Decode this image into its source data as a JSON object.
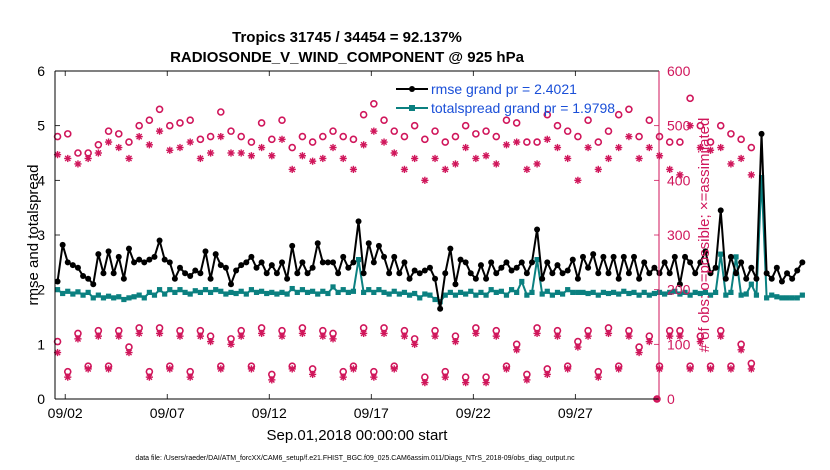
{
  "chart_data": {
    "type": "line",
    "title": "Tropics 31745 / 34454 = 92.137%",
    "subtitle": "RADIOSONDE_V_WIND_COMPONENT @ 925 hPa",
    "xlabel": "Sep.01,2018 00:00:00 start",
    "ylabel": "rmse and totalspread",
    "ylabel_right": "# of obs: o=possible; ×=assimilated",
    "footer": "data file: /Users/raeder/DAI/ATM_forcXX/CAM6_setup/f.e21.FHIST_BGC.f09_025.CAM6assim.011/Diags_NTrS_2018-09/obs_diag_output.nc",
    "xlim": [
      1.5,
      31.1
    ],
    "ylim": [
      0,
      6
    ],
    "ylim_right": [
      0,
      600
    ],
    "x_ticks": [
      2,
      7,
      12,
      17,
      22,
      27
    ],
    "x_tick_labels": [
      "09/02",
      "09/07",
      "09/12",
      "09/17",
      "09/22",
      "09/27"
    ],
    "y_ticks": [
      0,
      1,
      2,
      3,
      4,
      5,
      6
    ],
    "y_ticks_right": [
      0,
      100,
      200,
      300,
      400,
      500,
      600
    ],
    "legend_position": "top-right",
    "colors": {
      "rmse": "#000000",
      "spread": "#0b8080",
      "obs": "#d0165b"
    },
    "series": [
      {
        "name": "rmse grand pr = 2.4021",
        "key": "rmse",
        "x_start": 1.625,
        "x_step": 0.25,
        "values": [
          2.15,
          2.82,
          2.5,
          2.45,
          2.4,
          2.25,
          2.2,
          2.1,
          2.65,
          2.3,
          2.7,
          2.3,
          2.6,
          2.2,
          2.75,
          2.5,
          2.55,
          2.5,
          2.55,
          2.6,
          2.9,
          2.55,
          2.5,
          2.2,
          2.4,
          2.3,
          2.25,
          2.35,
          2.3,
          2.7,
          2.2,
          2.65,
          2.45,
          2.4,
          2.1,
          2.35,
          2.45,
          2.5,
          2.6,
          2.4,
          2.5,
          2.3,
          2.45,
          2.3,
          2.5,
          2.2,
          2.8,
          2.3,
          2.5,
          2.3,
          2.4,
          2.85,
          2.5,
          2.5,
          2.5,
          2.3,
          2.6,
          2.4,
          2.5,
          3.25,
          2.3,
          2.85,
          2.5,
          2.8,
          2.6,
          2.3,
          2.6,
          2.3,
          2.5,
          2.2,
          2.35,
          2.3,
          2.35,
          2.4,
          2.2,
          1.65,
          2.3,
          2.75,
          2.1,
          2.55,
          2.5,
          2.3,
          2.2,
          2.45,
          2.2,
          2.5,
          2.3,
          2.4,
          2.5,
          2.35,
          2.4,
          2.5,
          2.3,
          2.5,
          3.1,
          2.2,
          2.5,
          2.3,
          2.45,
          2.3,
          2.35,
          2.55,
          2.2,
          2.6,
          2.4,
          2.65,
          2.3,
          2.6,
          2.3,
          2.6,
          2.2,
          2.6,
          2.3,
          2.6,
          2.2,
          2.5,
          2.3,
          2.4,
          2.3,
          2.5,
          2.3,
          2.6,
          2.1,
          2.6,
          2.5,
          2.3,
          2.5,
          2.7,
          2.3,
          2.4,
          3.45,
          2.2,
          2.6,
          2.3,
          2.5,
          2.2,
          2.4,
          2.2,
          4.85,
          2.3,
          2.2,
          2.4,
          2.15,
          2.3,
          2.2,
          2.35,
          2.5
        ]
      },
      {
        "name": "totalspread grand pr = 1.9798",
        "key": "spread",
        "x_start": 1.625,
        "x_step": 0.25,
        "values": [
          2.0,
          1.93,
          1.97,
          1.92,
          1.96,
          1.9,
          1.95,
          1.85,
          1.9,
          1.85,
          1.88,
          1.85,
          1.87,
          1.82,
          1.85,
          1.87,
          1.9,
          1.85,
          1.95,
          1.9,
          2.0,
          1.92,
          2.0,
          1.95,
          2.0,
          1.95,
          1.92,
          1.98,
          1.95,
          2.0,
          1.95,
          2.0,
          1.97,
          1.92,
          1.95,
          1.93,
          1.97,
          1.92,
          2.0,
          1.95,
          1.97,
          1.93,
          1.95,
          1.92,
          1.95,
          1.92,
          2.02,
          1.95,
          2.0,
          1.95,
          1.97,
          1.92,
          1.97,
          1.93,
          2.05,
          1.95,
          2.0,
          1.95,
          1.97,
          2.55,
          1.95,
          2.0,
          1.95,
          2.0,
          1.95,
          1.92,
          1.97,
          1.92,
          1.95,
          1.9,
          1.93,
          1.85,
          1.92,
          1.9,
          1.82,
          1.78,
          1.9,
          1.95,
          1.9,
          1.95,
          1.92,
          1.97,
          1.9,
          1.95,
          1.9,
          2.0,
          1.95,
          1.97,
          1.9,
          2.0,
          1.95,
          2.15,
          1.9,
          1.95,
          2.55,
          1.92,
          1.97,
          1.9,
          1.95,
          1.92,
          2.0,
          1.95,
          1.95,
          1.95,
          1.93,
          1.95,
          1.9,
          1.95,
          1.93,
          1.95,
          1.92,
          1.97,
          1.93,
          1.95,
          1.9,
          1.95,
          1.9,
          1.93,
          1.95,
          1.92,
          1.95,
          1.97,
          1.92,
          1.95,
          1.9,
          1.95,
          1.93,
          1.95,
          1.9,
          1.95,
          2.65,
          1.9,
          1.95,
          2.6,
          1.9,
          1.92,
          2.1,
          1.9,
          4.05,
          1.85,
          1.9,
          1.87,
          1.85,
          1.85,
          1.85,
          1.85,
          1.9
        ]
      },
      {
        "name": "obs possible (upper)",
        "key": "poss_upper",
        "marker": "circle",
        "x_start": 1.625,
        "x_step": 0.5,
        "values": [
          480,
          485,
          450,
          450,
          465,
          490,
          485,
          470,
          500,
          510,
          530,
          500,
          505,
          510,
          475,
          480,
          525,
          490,
          480,
          470,
          505,
          475,
          510,
          460,
          480,
          470,
          480,
          490,
          480,
          475,
          520,
          540,
          510,
          490,
          480,
          500,
          475,
          490,
          470,
          480,
          500,
          485,
          490,
          480,
          510,
          505,
          470,
          470,
          520,
          500,
          490,
          480,
          510,
          470,
          490,
          520,
          530,
          480,
          510,
          480,
          470,
          470,
          550,
          500,
          470,
          500,
          485,
          475,
          460
        ]
      },
      {
        "name": "obs assimilated (upper)",
        "key": "assim_upper",
        "marker": "asterisk",
        "x_start": 1.625,
        "x_step": 0.5,
        "values": [
          447,
          440,
          430,
          440,
          450,
          470,
          460,
          440,
          480,
          465,
          490,
          455,
          460,
          470,
          440,
          450,
          480,
          450,
          450,
          445,
          460,
          445,
          475,
          420,
          445,
          435,
          440,
          460,
          440,
          420,
          465,
          490,
          470,
          450,
          420,
          440,
          400,
          440,
          420,
          430,
          460,
          440,
          445,
          430,
          465,
          470,
          420,
          430,
          475,
          460,
          440,
          400,
          460,
          420,
          440,
          460,
          480,
          440,
          460,
          445,
          420,
          410,
          500,
          460,
          455,
          460,
          430,
          440,
          410
        ]
      },
      {
        "name": "obs possible (lower)",
        "key": "poss_lower",
        "marker": "circle",
        "x_start": 1.625,
        "x_step": 0.5,
        "values": [
          105,
          50,
          120,
          60,
          125,
          60,
          125,
          95,
          130,
          50,
          130,
          60,
          125,
          50,
          125,
          115,
          60,
          110,
          125,
          60,
          130,
          45,
          125,
          60,
          130,
          55,
          125,
          120,
          50,
          60,
          130,
          50,
          130,
          60,
          125,
          110,
          40,
          125,
          50,
          115,
          40,
          130,
          40,
          125,
          60,
          100,
          45,
          130,
          55,
          125,
          60,
          105,
          125,
          50,
          130,
          60,
          125,
          95,
          115,
          60,
          125,
          125,
          60,
          115,
          60,
          125,
          60,
          100,
          65
        ]
      },
      {
        "name": "obs assimilated (lower)",
        "key": "assim_lower",
        "marker": "asterisk",
        "x_start": 1.625,
        "x_step": 0.5,
        "values": [
          85,
          40,
          110,
          55,
          115,
          55,
          115,
          85,
          120,
          40,
          120,
          55,
          115,
          40,
          115,
          105,
          55,
          100,
          115,
          55,
          120,
          35,
          115,
          55,
          120,
          45,
          115,
          110,
          40,
          55,
          120,
          40,
          120,
          55,
          115,
          100,
          30,
          115,
          40,
          105,
          30,
          120,
          30,
          115,
          55,
          90,
          35,
          120,
          45,
          115,
          55,
          95,
          115,
          40,
          120,
          55,
          115,
          85,
          105,
          55,
          115,
          115,
          55,
          105,
          55,
          115,
          55,
          90,
          55
        ]
      },
      {
        "name": "obs possible (end)",
        "key": "poss_end",
        "marker": "circle",
        "x": [
          31.0
        ],
        "values": [
          0
        ]
      },
      {
        "name": "obs assimilated (end)",
        "key": "assim_end",
        "marker": "asterisk",
        "x": [
          31.0
        ],
        "values": [
          0
        ]
      }
    ]
  }
}
